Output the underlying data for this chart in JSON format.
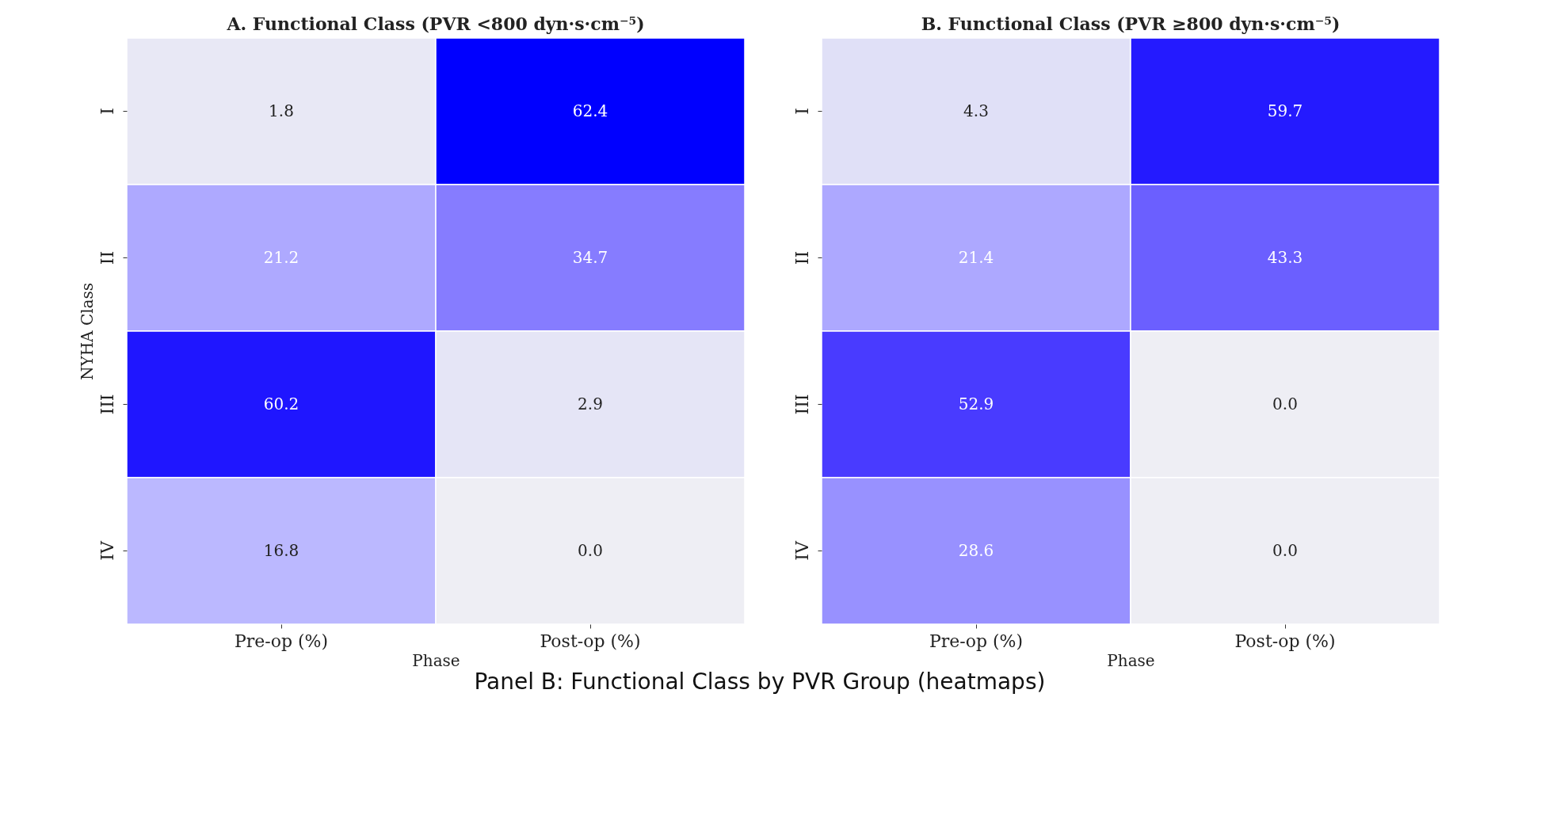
{
  "chart_data": [
    {
      "type": "heatmap",
      "title": "A. Functional Class (PVR <800 dyn·s·cm⁻⁵)",
      "xlabel": "Phase",
      "ylabel": "NYHA Class",
      "categories": [
        "Pre-op (%)",
        "Post-op (%)"
      ],
      "y_categories": [
        "I",
        "II",
        "III",
        "IV"
      ],
      "cells": [
        [
          1.8,
          62.4
        ],
        [
          21.2,
          34.7
        ],
        [
          60.2,
          2.9
        ],
        [
          16.8,
          0.0
        ]
      ],
      "cell_labels": [
        [
          "1.8",
          "62.4"
        ],
        [
          "21.2",
          "34.7"
        ],
        [
          "60.2",
          "2.9"
        ],
        [
          "16.8",
          "0.0"
        ]
      ]
    },
    {
      "type": "heatmap",
      "title": "B. Functional Class (PVR ≥800 dyn·s·cm⁻⁵)",
      "xlabel": "Phase",
      "categories": [
        "Pre-op (%)",
        "Post-op (%)"
      ],
      "y_categories": [
        "I",
        "II",
        "III",
        "IV"
      ],
      "cells": [
        [
          4.3,
          59.7
        ],
        [
          21.4,
          43.3
        ],
        [
          52.9,
          0.0
        ],
        [
          28.6,
          0.0
        ]
      ],
      "cell_labels": [
        [
          "4.3",
          "59.7"
        ],
        [
          "21.4",
          "43.3"
        ],
        [
          "52.9",
          "0.0"
        ],
        [
          "28.6",
          "0.0"
        ]
      ],
      "annotations": [
        "Panel B: Functional Class by PVR Group (heatmaps)"
      ]
    }
  ]
}
